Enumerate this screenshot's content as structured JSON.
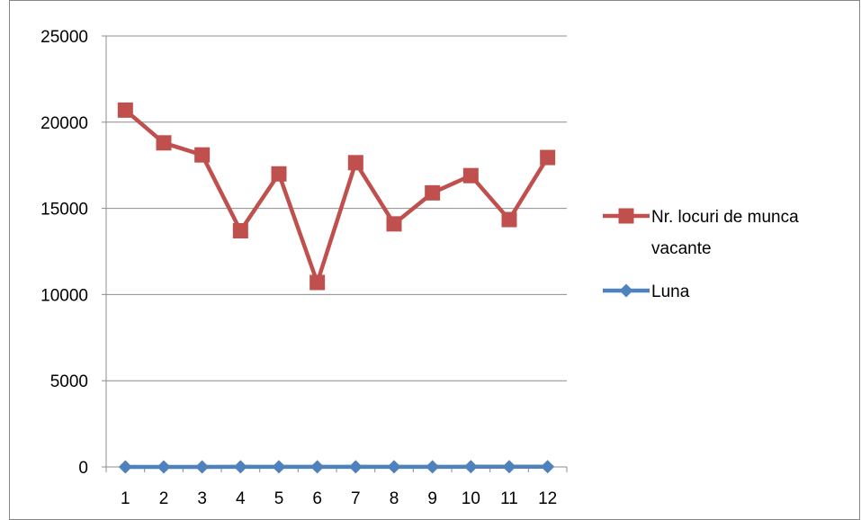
{
  "chart_data": {
    "type": "line",
    "categories": [
      "1",
      "2",
      "3",
      "4",
      "5",
      "6",
      "7",
      "8",
      "9",
      "10",
      "11",
      "12"
    ],
    "series": [
      {
        "name": "Nr. locuri de munca vacante",
        "legend_lines": [
          "Nr. locuri de munca",
          "vacante"
        ],
        "marker": "square",
        "color": "#C0504D",
        "values": [
          20700,
          18800,
          18100,
          13700,
          17000,
          10700,
          17650,
          14100,
          15900,
          16900,
          14350,
          17950
        ]
      },
      {
        "name": "Luna",
        "legend_lines": [
          "Luna"
        ],
        "marker": "diamond",
        "color": "#4F81BD",
        "values": [
          1,
          2,
          3,
          4,
          5,
          6,
          7,
          8,
          9,
          10,
          11,
          12
        ]
      }
    ],
    "y_ticks": [
      "0",
      "5000",
      "10000",
      "15000",
      "20000",
      "25000"
    ],
    "ylim": [
      0,
      25000
    ],
    "xlabel": "",
    "ylabel": "",
    "title": "",
    "grid": {
      "horizontal": true,
      "vertical": false,
      "color": "#8C8C8C"
    },
    "legend_position": "right",
    "frame_color": "#868686"
  }
}
